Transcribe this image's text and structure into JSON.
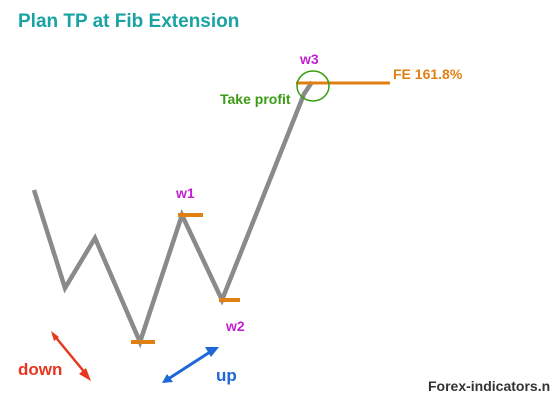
{
  "title": "Plan TP at Fib Extension",
  "wave_labels": {
    "w1": "w1",
    "w2": "w2",
    "w3": "w3"
  },
  "take_profit_label": "Take profit",
  "fib_extension_label": "FE 161.8%",
  "direction_labels": {
    "down": "down",
    "up": "up"
  },
  "watermark": "Forex-indicators.net",
  "icons": {
    "down_arrow": "down-arrow-icon",
    "up_arrow": "up-arrow-icon"
  },
  "colors": {
    "title": "#1aa3a3",
    "price_line": "#8a8a8a",
    "level_marker": "#e07f12",
    "wave_label": "#c21fd1",
    "take_profit": "#3a9c12",
    "fib_label": "#e07f12",
    "down": "#e8371f",
    "up": "#1f66d6",
    "watermark": "#333333"
  }
}
